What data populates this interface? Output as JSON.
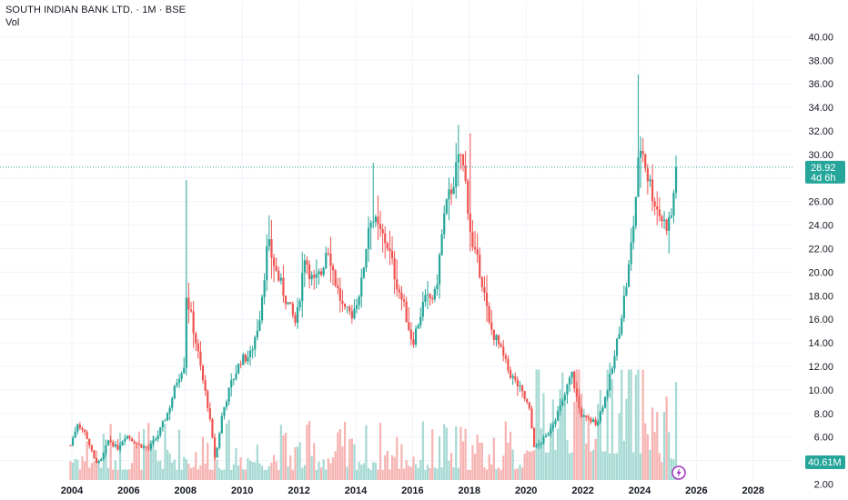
{
  "header": {
    "title": "SOUTH INDIAN BANK LTD. · 1M · BSE",
    "volume_label": "Vol"
  },
  "colors": {
    "up": "#26a69a",
    "down": "#ef5350",
    "up_volume": "#a6d9d3",
    "down_volume": "#f6b3b1",
    "grid": "#f0f3fa",
    "price_line": "#26a69a",
    "event_icon": "#a334c2"
  },
  "price_badge": {
    "price": "28.92",
    "countdown": "4d 6h"
  },
  "volume_badge": {
    "value": "40.61M"
  },
  "chart_data": {
    "type": "candlestick",
    "title": "SOUTH INDIAN BANK LTD. · 1M · BSE",
    "interval": "1M",
    "exchange": "BSE",
    "y_axis": {
      "range": [
        2.0,
        40.0
      ],
      "ticks": [
        "2.00",
        "4.00",
        "6.00",
        "8.00",
        "10.00",
        "12.00",
        "14.00",
        "16.00",
        "18.00",
        "20.00",
        "22.00",
        "24.00",
        "26.00",
        "28.00",
        "30.00",
        "32.00",
        "34.00",
        "36.00",
        "38.00",
        "40.00"
      ],
      "position": "right"
    },
    "x_axis": {
      "range": [
        2003.5,
        2029.0
      ],
      "ticks": [
        "2004",
        "2006",
        "2008",
        "2010",
        "2012",
        "2014",
        "2016",
        "2018",
        "2020",
        "2022",
        "2024",
        "2026",
        "2028"
      ]
    },
    "grid": true,
    "last_price": 28.92,
    "last_volume": "40.61M",
    "close_anchors": [
      [
        2003.95,
        5.3
      ],
      [
        2004.2,
        7.2
      ],
      [
        2004.5,
        6.2
      ],
      [
        2004.8,
        4.0
      ],
      [
        2005.0,
        3.8
      ],
      [
        2005.3,
        5.8
      ],
      [
        2005.6,
        5.0
      ],
      [
        2005.9,
        6.2
      ],
      [
        2006.3,
        5.4
      ],
      [
        2006.7,
        5.0
      ],
      [
        2007.0,
        6.0
      ],
      [
        2007.4,
        8.2
      ],
      [
        2007.7,
        10.8
      ],
      [
        2007.95,
        12.2
      ],
      [
        2008.0,
        18.5
      ],
      [
        2008.3,
        15.0
      ],
      [
        2008.6,
        11.0
      ],
      [
        2008.8,
        8.5
      ],
      [
        2009.05,
        4.0
      ],
      [
        2009.3,
        8.0
      ],
      [
        2009.6,
        10.5
      ],
      [
        2009.95,
        12.5
      ],
      [
        2010.3,
        13.0
      ],
      [
        2010.6,
        16.0
      ],
      [
        2010.9,
        22.5
      ],
      [
        2011.2,
        20.0
      ],
      [
        2011.5,
        18.0
      ],
      [
        2011.9,
        15.5
      ],
      [
        2012.2,
        21.5
      ],
      [
        2012.5,
        19.0
      ],
      [
        2012.8,
        20.0
      ],
      [
        2013.0,
        22.5
      ],
      [
        2013.3,
        19.0
      ],
      [
        2013.6,
        16.5
      ],
      [
        2013.9,
        16.5
      ],
      [
        2014.2,
        19.0
      ],
      [
        2014.5,
        25.0
      ],
      [
        2014.8,
        23.5
      ],
      [
        2015.1,
        22.5
      ],
      [
        2015.4,
        19.5
      ],
      [
        2015.7,
        17.0
      ],
      [
        2016.0,
        14.0
      ],
      [
        2016.4,
        17.5
      ],
      [
        2016.8,
        18.0
      ],
      [
        2017.1,
        24.5
      ],
      [
        2017.4,
        27.5
      ],
      [
        2017.7,
        30.0
      ],
      [
        2017.9,
        27.0
      ],
      [
        2018.1,
        22.0
      ],
      [
        2018.4,
        20.0
      ],
      [
        2018.7,
        15.5
      ],
      [
        2019.0,
        14.0
      ],
      [
        2019.4,
        11.5
      ],
      [
        2019.8,
        10.0
      ],
      [
        2020.1,
        8.5
      ],
      [
        2020.3,
        5.0
      ],
      [
        2020.7,
        6.0
      ],
      [
        2021.0,
        7.5
      ],
      [
        2021.3,
        9.0
      ],
      [
        2021.6,
        11.5
      ],
      [
        2021.9,
        8.0
      ],
      [
        2022.1,
        7.5
      ],
      [
        2022.5,
        7.2
      ],
      [
        2022.8,
        9.5
      ],
      [
        2023.1,
        12.5
      ],
      [
        2023.3,
        15.5
      ],
      [
        2023.6,
        20.0
      ],
      [
        2023.8,
        24.5
      ],
      [
        2023.95,
        29.0
      ],
      [
        2024.05,
        31.0
      ],
      [
        2024.3,
        28.0
      ],
      [
        2024.6,
        25.5
      ],
      [
        2024.9,
        24.0
      ],
      [
        2025.1,
        24.5
      ],
      [
        2025.3,
        28.92
      ]
    ]
  }
}
